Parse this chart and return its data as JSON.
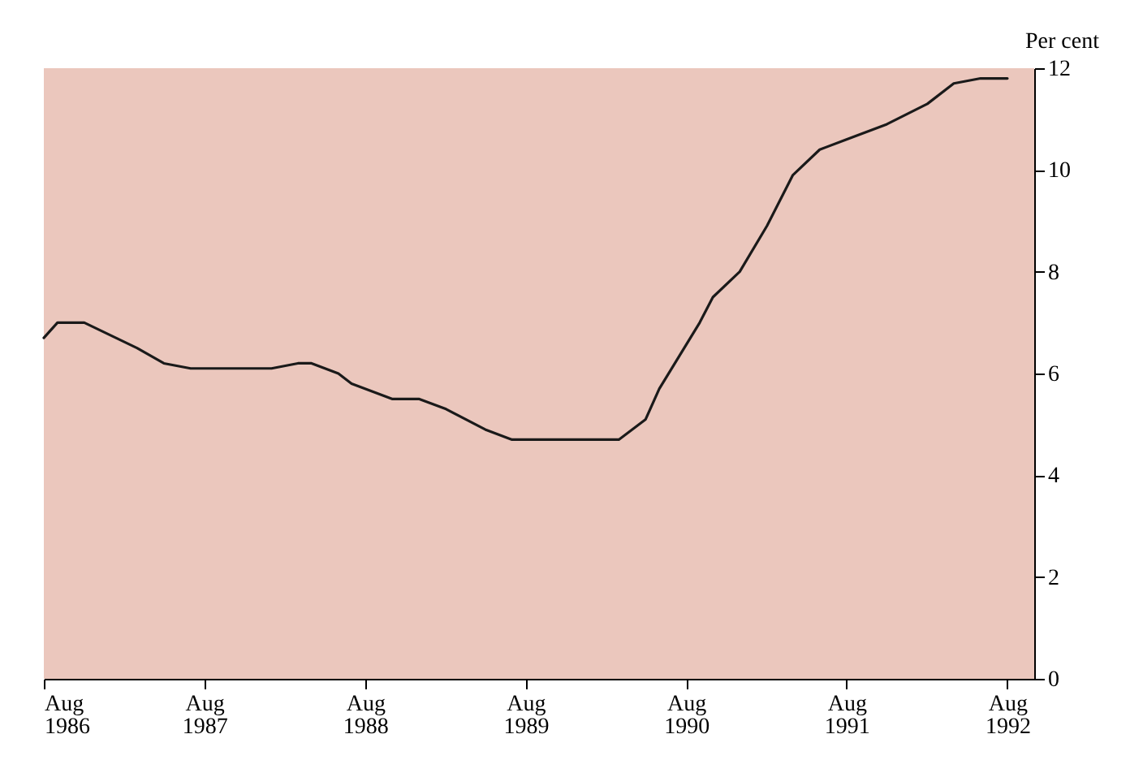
{
  "chart_data": {
    "type": "line",
    "ylabel": "Per cent",
    "x": [
      "1986-08",
      "1986-09",
      "1986-11",
      "1987-03",
      "1987-05",
      "1987-07",
      "1987-12",
      "1988-01",
      "1988-03",
      "1988-04",
      "1988-06",
      "1988-07",
      "1988-10",
      "1988-12",
      "1989-01",
      "1989-02",
      "1989-05",
      "1989-07",
      "1990-02",
      "1990-03",
      "1990-05",
      "1990-06",
      "1990-09",
      "1990-10",
      "1990-12",
      "1991-02",
      "1991-04",
      "1991-06",
      "1991-08",
      "1991-11",
      "1992-02",
      "1992-04",
      "1992-06",
      "1992-08"
    ],
    "series": [
      {
        "color": "#1a1a1a",
        "values": [
          6.7,
          7.0,
          7.0,
          6.5,
          6.2,
          6.1,
          6.1,
          6.1,
          6.2,
          6.2,
          6.0,
          5.8,
          5.5,
          5.5,
          5.4,
          5.3,
          4.9,
          4.7,
          4.7,
          4.7,
          5.1,
          5.7,
          7.0,
          7.5,
          8.0,
          8.9,
          9.9,
          10.4,
          10.6,
          10.9,
          11.3,
          11.7,
          11.8,
          11.8
        ]
      }
    ],
    "xlim": [
      "1986-08",
      "1992-10"
    ],
    "xticks": [
      {
        "value": "1986-08",
        "label": "Aug 1986"
      },
      {
        "value": "1987-08",
        "label": "Aug 1987"
      },
      {
        "value": "1988-08",
        "label": "Aug 1988"
      },
      {
        "value": "1989-08",
        "label": "Aug 1989"
      },
      {
        "value": "1990-08",
        "label": "Aug 1990"
      },
      {
        "value": "1991-08",
        "label": "Aug 1991"
      },
      {
        "value": "1992-08",
        "label": "Aug 1992"
      }
    ],
    "ylim": [
      0,
      12
    ],
    "yticks": [
      0,
      2,
      4,
      6,
      8,
      10,
      12
    ],
    "grid": false,
    "line_style": "solid",
    "marker": "none"
  }
}
